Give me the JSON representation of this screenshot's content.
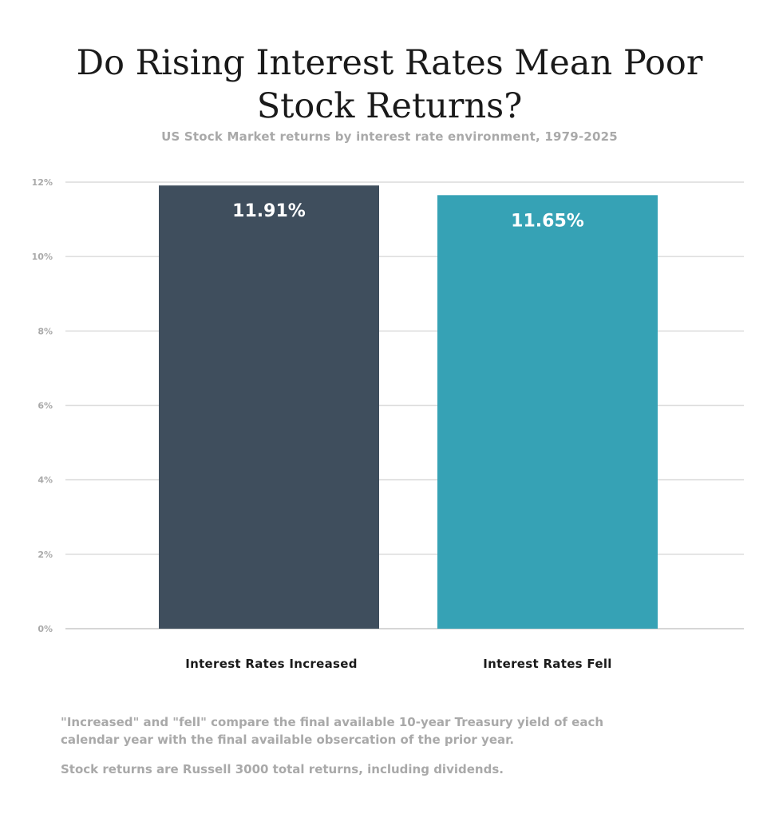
{
  "title_lines": [
    "Do Rising Interest Rates Mean Poor",
    "Stock Returns?"
  ],
  "subtitle": "US Stock Market returns by interest rate environment, 1979-2025",
  "chart_data": {
    "type": "bar",
    "categories": [
      "Interest Rates Increased",
      "Interest Rates Fell"
    ],
    "values": [
      11.91,
      11.65
    ],
    "data_labels": [
      "11.91%",
      "11.65%"
    ],
    "colors": [
      "#3f4e5d",
      "#36a2b5"
    ],
    "ylim": [
      0,
      12
    ],
    "yticks": [
      0,
      2,
      4,
      6,
      8,
      10,
      12
    ],
    "ytick_labels": [
      "0%",
      "2%",
      "4%",
      "6%",
      "8%",
      "10%",
      "12%"
    ],
    "grid": true,
    "title": "Do Rising Interest Rates Mean Poor Stock Returns?",
    "subtitle": "US Stock Market returns by interest rate environment, 1979-2025"
  },
  "notes": [
    "\"Increased\" and \"fell\" compare the final available 10-year Treasury yield of each calendar year with the final available obsercation of the prior year.",
    "Stock returns are Russell 3000 total returns, including dividends."
  ]
}
